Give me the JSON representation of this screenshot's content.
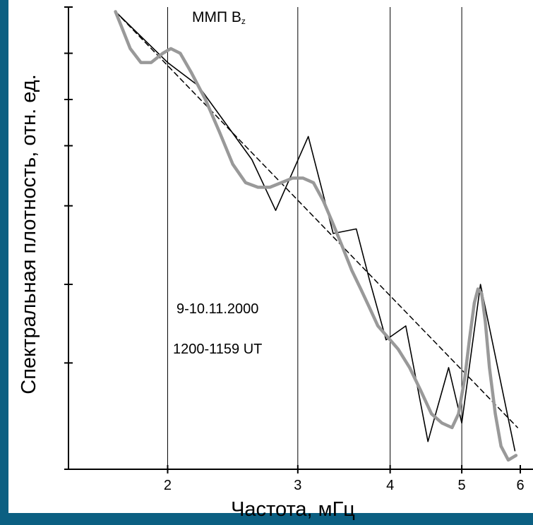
{
  "chart_data": {
    "type": "line",
    "title": "ММП B",
    "title_subscript": "z",
    "xlabel": "Частота, мГц",
    "ylabel": "Спектральная плотность, отн. ед.",
    "x_scale": "log",
    "y_scale": "log",
    "xlim": [
      1.65,
      6.0
    ],
    "ylim": [
      0.0,
      1.0
    ],
    "x_ticks": [
      2,
      3,
      4,
      5,
      6
    ],
    "x_tick_labels": [
      "2",
      "3",
      "4",
      "5",
      "6"
    ],
    "vertical_gridlines_at": [
      2,
      3,
      4,
      5
    ],
    "y_ticks": [
      0.0,
      0.23,
      0.4,
      0.57,
      0.7,
      0.8,
      0.9,
      1.0
    ],
    "y_tick_labels": [],
    "annotations": [
      "9-10.11.2000",
      "1200-1159 UT"
    ],
    "series": [
      {
        "style": "thin-black",
        "color": "#000000",
        "x": [
          1.7,
          2.0,
          2.2,
          2.6,
          2.8,
          3.1,
          3.35,
          3.6,
          3.75,
          3.95,
          4.2,
          4.5,
          4.8,
          5.0,
          5.3,
          5.9
        ],
        "y": [
          0.99,
          0.88,
          0.83,
          0.67,
          0.56,
          0.72,
          0.51,
          0.52,
          0.41,
          0.28,
          0.31,
          0.06,
          0.22,
          0.1,
          0.4,
          0.04
        ]
      },
      {
        "style": "dashed-fit",
        "color": "#000000",
        "x": [
          1.7,
          5.95
        ],
        "y": [
          0.99,
          0.09
        ]
      },
      {
        "style": "thick-gray",
        "color": "#999999",
        "x": [
          1.7,
          1.73,
          1.78,
          1.84,
          1.9,
          1.97,
          2.02,
          2.08,
          2.15,
          2.25,
          2.35,
          2.45,
          2.55,
          2.65,
          2.75,
          2.85,
          2.95,
          3.05,
          3.15,
          3.25,
          3.35,
          3.45,
          3.55,
          3.65,
          3.75,
          3.85,
          3.95,
          4.1,
          4.25,
          4.4,
          4.55,
          4.7,
          4.85,
          4.95,
          5.05,
          5.12,
          5.2,
          5.26,
          5.32,
          5.38,
          5.45,
          5.55,
          5.65,
          5.78,
          5.92
        ],
        "y": [
          0.99,
          0.96,
          0.91,
          0.88,
          0.88,
          0.9,
          0.91,
          0.9,
          0.86,
          0.8,
          0.73,
          0.66,
          0.62,
          0.61,
          0.61,
          0.62,
          0.63,
          0.63,
          0.62,
          0.58,
          0.53,
          0.48,
          0.43,
          0.39,
          0.35,
          0.31,
          0.29,
          0.26,
          0.22,
          0.17,
          0.12,
          0.1,
          0.09,
          0.12,
          0.2,
          0.28,
          0.36,
          0.39,
          0.38,
          0.32,
          0.22,
          0.12,
          0.05,
          0.02,
          0.03
        ]
      }
    ]
  }
}
